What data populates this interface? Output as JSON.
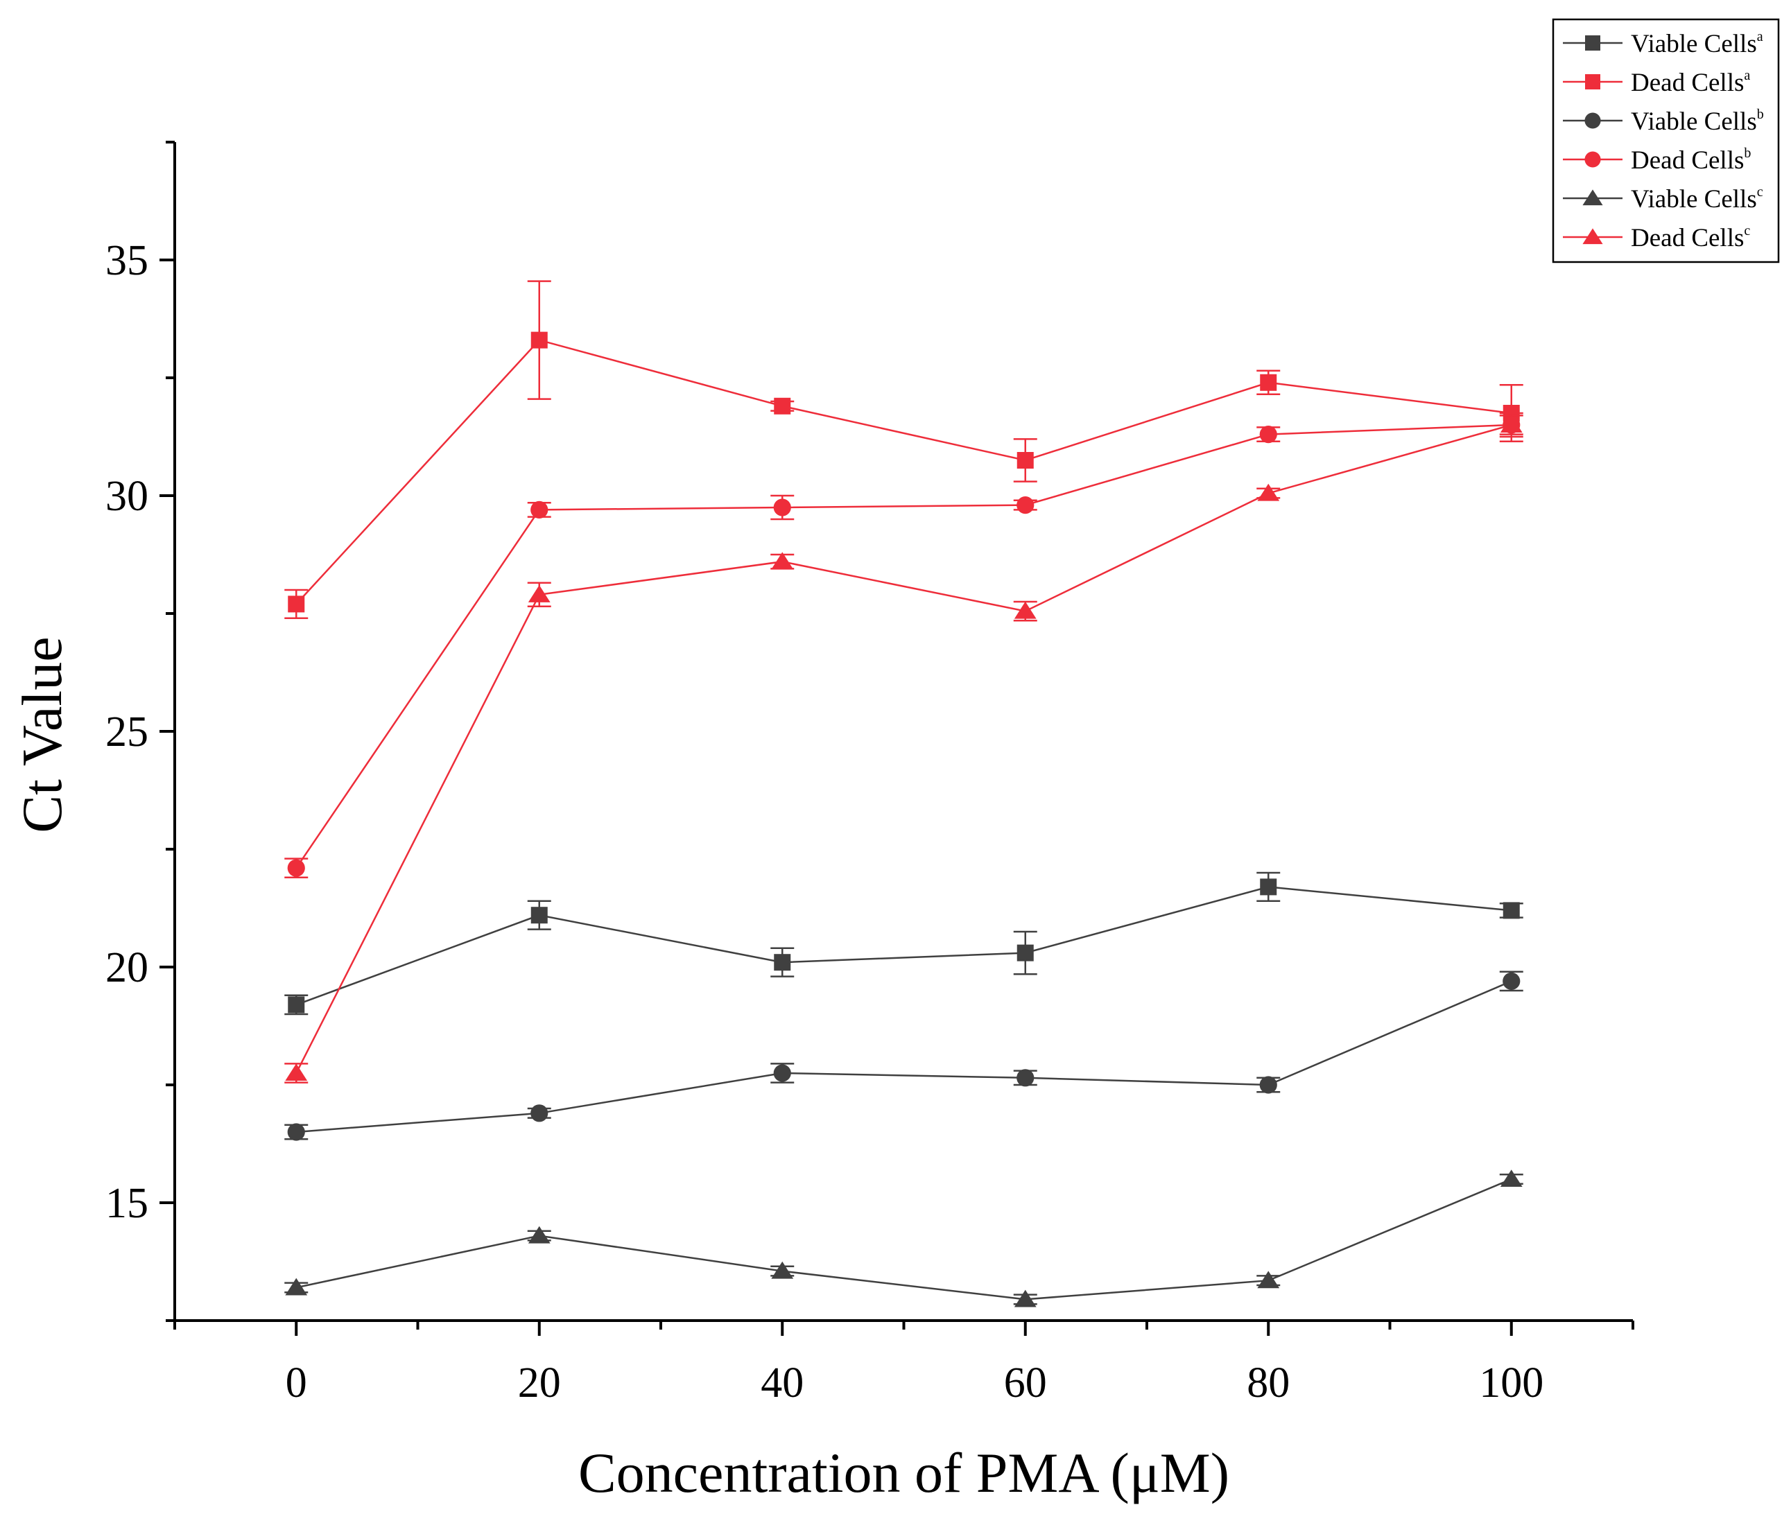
{
  "chart_data": {
    "type": "line",
    "title": "",
    "xlabel": "Concentration of PMA (μM)",
    "ylabel": "Ct Value",
    "x": [
      0,
      20,
      40,
      60,
      80,
      100
    ],
    "x_ticks": [
      0,
      20,
      40,
      60,
      80,
      100
    ],
    "x_tick_labels": [
      "0",
      "20",
      "40",
      "60",
      "80",
      "100"
    ],
    "xlim": [
      -10,
      110
    ],
    "y_ticks": [
      15,
      20,
      25,
      30,
      35
    ],
    "y_tick_labels": [
      "15",
      "20",
      "25",
      "30",
      "35"
    ],
    "ylim": [
      12.5,
      37.5
    ],
    "grid": false,
    "legend_position": "top-right",
    "series": [
      {
        "name": "Viable Cells",
        "sup": "a",
        "marker": "square",
        "color": "#404040",
        "values": [
          19.2,
          21.1,
          20.1,
          20.3,
          21.7,
          21.2
        ],
        "errors": [
          0.2,
          0.3,
          0.3,
          0.45,
          0.3,
          0.15
        ]
      },
      {
        "name": "Dead Cells",
        "sup": "a",
        "marker": "square",
        "color": "#ee2d3a",
        "values": [
          27.7,
          33.3,
          31.9,
          30.75,
          32.4,
          31.75
        ],
        "errors": [
          0.3,
          1.25,
          0.1,
          0.45,
          0.25,
          0.6
        ]
      },
      {
        "name": "Viable Cells",
        "sup": "b",
        "marker": "circle",
        "color": "#404040",
        "values": [
          16.5,
          16.9,
          17.75,
          17.65,
          17.5,
          19.7
        ],
        "errors": [
          0.15,
          0.1,
          0.2,
          0.15,
          0.15,
          0.2
        ]
      },
      {
        "name": "Dead Cells",
        "sup": "b",
        "marker": "circle",
        "color": "#ee2d3a",
        "values": [
          22.1,
          29.7,
          29.75,
          29.8,
          31.3,
          31.5
        ],
        "errors": [
          0.2,
          0.15,
          0.25,
          0.1,
          0.15,
          0.25
        ]
      },
      {
        "name": "Viable Cells",
        "sup": "c",
        "marker": "triangle",
        "color": "#404040",
        "values": [
          13.2,
          14.3,
          13.55,
          12.95,
          13.35,
          15.5
        ],
        "errors": [
          0.1,
          0.1,
          0.1,
          0.1,
          0.1,
          0.1
        ]
      },
      {
        "name": "Dead Cells",
        "sup": "c",
        "marker": "triangle",
        "color": "#ee2d3a",
        "values": [
          17.75,
          27.9,
          28.6,
          27.55,
          30.05,
          31.5
        ],
        "errors": [
          0.2,
          0.25,
          0.15,
          0.2,
          0.1,
          0.2
        ]
      }
    ]
  }
}
